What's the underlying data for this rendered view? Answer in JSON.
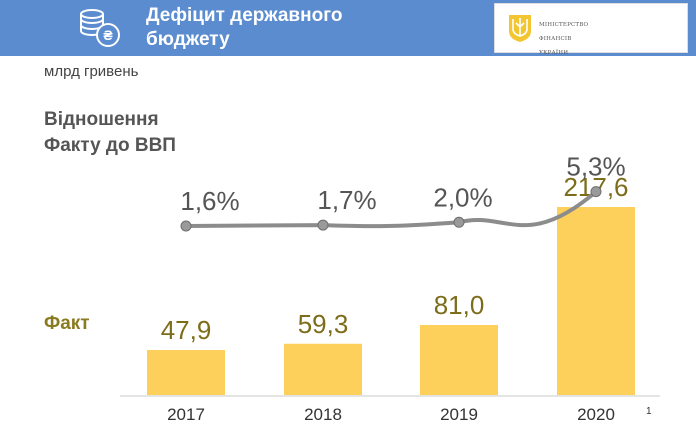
{
  "header": {
    "title_line1": "Дефіцит державного",
    "title_line2": "бюджету",
    "ministry_line1": "МІНІСТЕРСТВО",
    "ministry_line2": "ФІНАНСІВ",
    "ministry_line3": "УКРАЇНИ",
    "icon": "coins-hryvnia-icon"
  },
  "unit_label": "млрд гривень",
  "ratio_label_line1": "Відношення",
  "ratio_label_line2": "Факту до ВВП",
  "fact_label": "Факт",
  "page_number": "1",
  "colors": {
    "header": "#5b8ccf",
    "bar": "#fcd05a",
    "line": "#8c8c8c",
    "fact_label": "#8a7a20"
  },
  "chart_data": {
    "type": "bar",
    "categories": [
      "2017",
      "2018",
      "2019",
      "2020"
    ],
    "values": [
      47.9,
      59.3,
      81.0,
      217.6
    ],
    "value_labels": [
      "47,9",
      "59,3",
      "81,0",
      "217,6"
    ],
    "ylim": [
      0,
      217.6
    ],
    "line_series": {
      "values": [
        1.6,
        1.7,
        2.0,
        5.3
      ],
      "labels": [
        "1,6%",
        "1,7%",
        "2,0%",
        "5,3%"
      ]
    },
    "grid": false
  }
}
